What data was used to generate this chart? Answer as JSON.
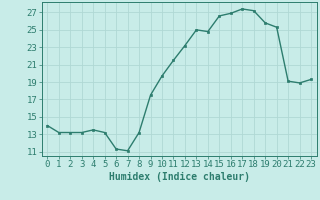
{
  "x": [
    0,
    1,
    2,
    3,
    4,
    5,
    6,
    7,
    8,
    9,
    10,
    11,
    12,
    13,
    14,
    15,
    16,
    17,
    18,
    19,
    20,
    21,
    22,
    23
  ],
  "y": [
    14.0,
    13.2,
    13.2,
    13.2,
    13.5,
    13.2,
    11.3,
    11.1,
    13.2,
    17.5,
    19.7,
    21.5,
    23.2,
    25.0,
    24.8,
    26.6,
    26.9,
    27.4,
    27.2,
    25.8,
    25.3,
    19.1,
    18.9,
    19.3
  ],
  "line_color": "#2d7d6e",
  "marker_color": "#2d7d6e",
  "bg_color": "#c8ece8",
  "grid_color": "#b0d8d4",
  "xlabel": "Humidex (Indice chaleur)",
  "ylabel_ticks": [
    11,
    13,
    15,
    17,
    19,
    21,
    23,
    25,
    27
  ],
  "xlim": [
    -0.5,
    23.5
  ],
  "ylim": [
    10.5,
    28.2
  ],
  "xlabel_fontsize": 7,
  "tick_fontsize": 6.5
}
